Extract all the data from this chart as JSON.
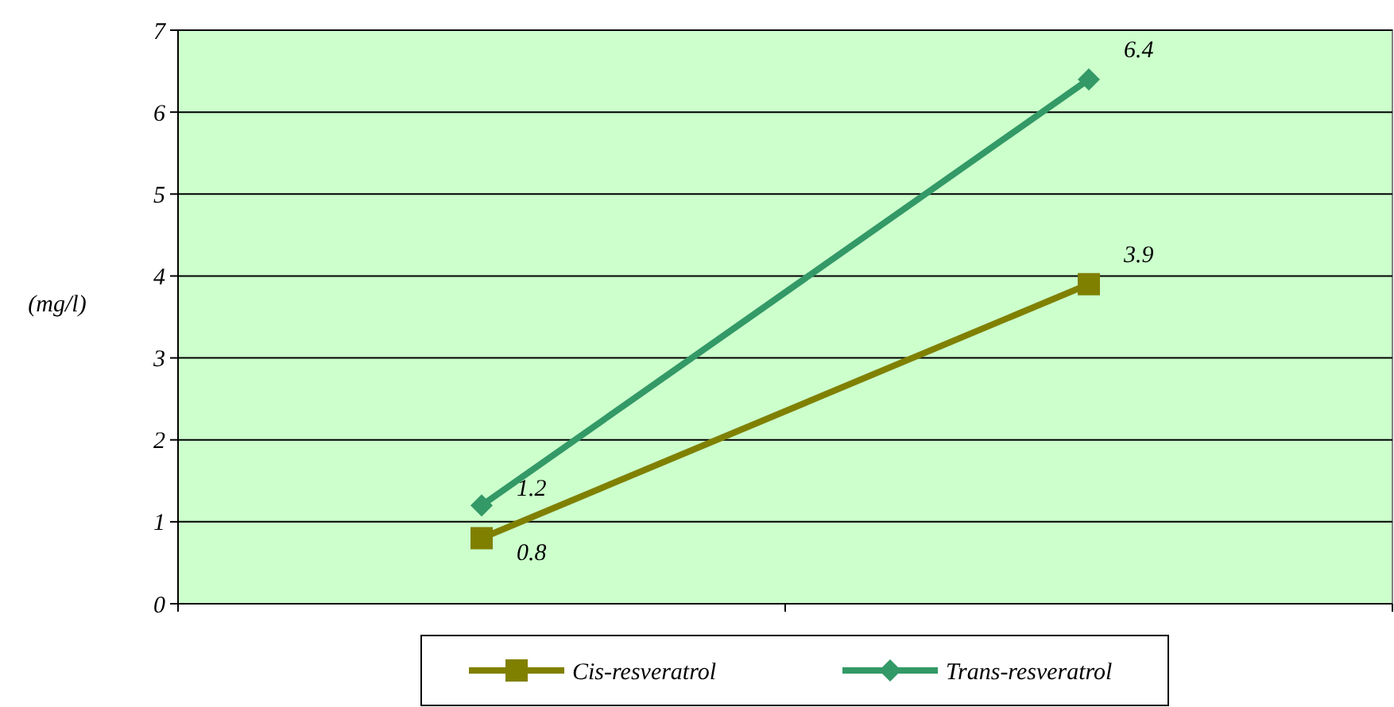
{
  "chart_data": {
    "type": "line",
    "ylabel": "(mg/l)",
    "categories": [
      null,
      null
    ],
    "series": [
      {
        "name": "Cis-resveratrol",
        "color": "#808000",
        "values": [
          0.8,
          3.9
        ],
        "marker": "square"
      },
      {
        "name": "Trans-resveratrol",
        "color": "#339966",
        "values": [
          1.2,
          6.4
        ],
        "marker": "diamond"
      }
    ],
    "ylim": [
      0,
      7
    ],
    "yticks": [
      0,
      1,
      2,
      3,
      4,
      5,
      6,
      7
    ],
    "grid": "y",
    "legend": "bottom",
    "data_labels": true
  }
}
